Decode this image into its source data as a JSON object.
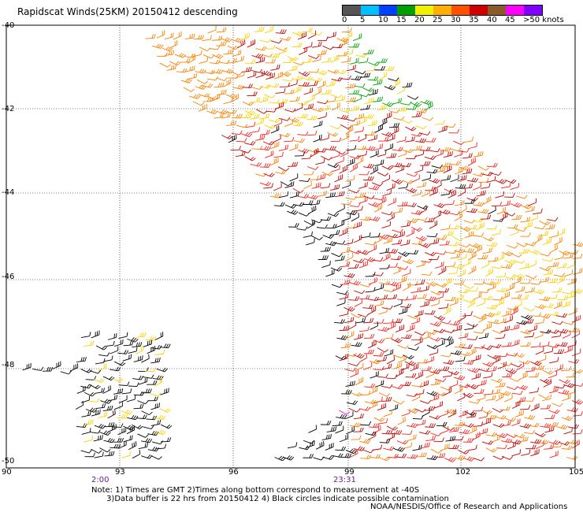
{
  "title": "Rapidscat Winds(25KM) 20150412 descending",
  "legend": {
    "colors": [
      "#555555",
      "#00c0ff",
      "#0040ff",
      "#00a000",
      "#f0f000",
      "#ffb000",
      "#ff5000",
      "#d00000",
      "#8b5a2b",
      "#ff00ff",
      "#8000ff"
    ],
    "labels": [
      "0",
      "5",
      "10",
      "15",
      "20",
      "25",
      "30",
      "35",
      "40",
      "45",
      ">50 knots"
    ]
  },
  "axes": {
    "y_labels": [
      "-40",
      "-42",
      "-44",
      "-46",
      "-48",
      "-50"
    ],
    "x_labels": [
      "90",
      "93",
      "96",
      "99",
      "102",
      "105"
    ]
  },
  "times": [
    "2:00",
    "23:31"
  ],
  "notes": "Note: 1) Times are GMT 2)Times along bottom correspond to measurement at -40S\n      3)Data buffer is 22 hrs from 20150412 4) Black circles indicate possible contamination",
  "credit": "NOAA/NESDIS/Office of Research and Applications",
  "chart_data": {
    "type": "scatter",
    "title": "Rapidscat Winds(25KM) 20150412 descending",
    "xlim": [
      90,
      105
    ],
    "ylim": [
      -50,
      -40
    ],
    "x_ticks": [
      90,
      93,
      96,
      99,
      102,
      105
    ],
    "y_ticks": [
      -40,
      -42,
      -44,
      -46,
      -48,
      -50
    ],
    "grid": true,
    "legend_position": "top-right"
  }
}
